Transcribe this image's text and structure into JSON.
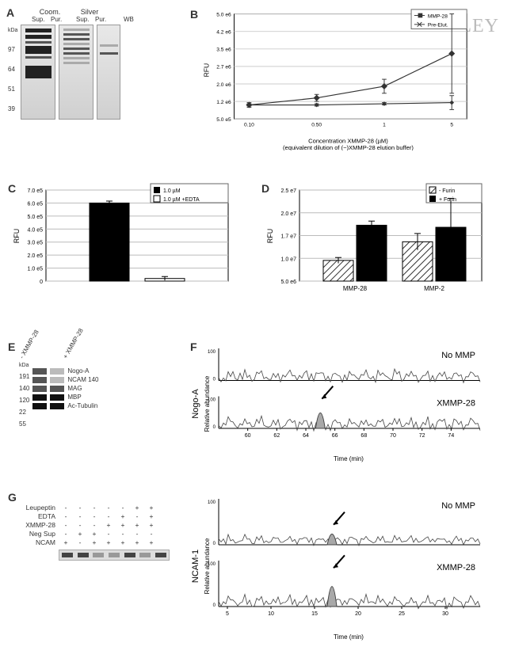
{
  "watermark": "© WILEY",
  "panelA": {
    "label": "A",
    "topHeaders": [
      "Coom.",
      "Silver",
      ""
    ],
    "subHeaders": [
      "Sup.",
      "Pur.",
      "Sup.",
      "Pur.",
      "WB"
    ],
    "mwHeader": "kDa",
    "mw": [
      "97",
      "64",
      "51",
      "39"
    ]
  },
  "panelB": {
    "label": "B",
    "type": "line",
    "ylabel": "RFU",
    "xlabel": "Concentration XMMP-28 (µM)\n(equivalent dilution of (−)XMMP-28 elution buffer)",
    "legend": [
      "MMP-28",
      "Pre-Elut."
    ],
    "xticks": [
      "0.10",
      "0.50",
      "1",
      "5"
    ],
    "yticks": [
      "5.0 e5",
      "1.2 e6",
      "2.0 e6",
      "2.7 e6",
      "3.5 e6",
      "4.2 e6",
      "5.0 e6"
    ],
    "ylim": [
      500000,
      5000000
    ],
    "series": {
      "mmp28": [
        1100000,
        1400000,
        1900000,
        3300000
      ],
      "mmp28_err": [
        100000,
        150000,
        300000,
        1700000
      ],
      "preelut": [
        1100000,
        1100000,
        1150000,
        1200000
      ],
      "preelut_err": [
        50000,
        50000,
        50000,
        300000
      ]
    },
    "colors": {
      "line": "#333333",
      "bg": "#ffffff",
      "grid": "#cccccc",
      "axis": "#000000"
    }
  },
  "panelC": {
    "label": "C",
    "type": "bar",
    "ylabel": "RFU",
    "legend": [
      "1.0 µM",
      "1.0 µM +EDTA"
    ],
    "yticks": [
      "0",
      "1.0 e5",
      "2.0 e5",
      "3.0 e5",
      "4.0 e5",
      "5.0 e5",
      "6.0 e5",
      "7.0 e5"
    ],
    "ylim": [
      0,
      700000
    ],
    "values": [
      600000,
      20000
    ],
    "errs": [
      15000,
      15000
    ],
    "bar_colors": [
      "#000000",
      "#ffffff"
    ],
    "bar_borders": [
      "#000000",
      "#000000"
    ],
    "grid_color": "#bbbbbb"
  },
  "panelD": {
    "label": "D",
    "type": "grouped-bar",
    "ylabel": "RFU",
    "legend": [
      "- Furin",
      "+ Furin"
    ],
    "categories": [
      "MMP-28",
      "MMP-2"
    ],
    "yticks": [
      "5.0 e6",
      "1.0 e7",
      "1.7 e7",
      "2.0 e7",
      "2.5 e7"
    ],
    "ylim": [
      3000000,
      25000000
    ],
    "values": {
      "minusFurin": [
        8000000,
        12500000
      ],
      "plusFurin": [
        16500000,
        16000000
      ]
    },
    "errs": {
      "minusFurin": [
        700000,
        2000000
      ],
      "plusFurin": [
        1000000,
        7000000
      ]
    },
    "bar_patterns": [
      "hatch",
      "solid"
    ],
    "hatch_color": "#333333",
    "solid_color": "#000000",
    "grid_color": "#bbbbbb"
  },
  "panelE": {
    "label": "E",
    "laneHeaders": [
      "- XMMP-28",
      "+ XMMP-28"
    ],
    "mwHeader": "kDa",
    "rows": [
      {
        "mw": "191",
        "label": "Nogo-A",
        "b1": "mid",
        "b2": "faint"
      },
      {
        "mw": "140",
        "label": "NCAM 140",
        "b1": "mid",
        "b2": "faint"
      },
      {
        "mw": "120",
        "label": "MAG",
        "b1": "mid",
        "b2": "mid"
      },
      {
        "mw": "22",
        "label": "MBP",
        "b1": "dark",
        "b2": "dark"
      },
      {
        "mw": "55",
        "label": "Ac-Tubulin",
        "b1": "dark",
        "b2": "dark"
      }
    ]
  },
  "panelF": {
    "label": "F",
    "group_ylabel": "Nogo-A",
    "ylabel": "Relative abundance",
    "xlabel": "Time (min)",
    "xlim": [
      58,
      76
    ],
    "xticks": [
      60,
      62,
      64,
      66,
      68,
      70,
      72,
      74
    ],
    "ylim": [
      0,
      100
    ],
    "traces": [
      {
        "label": "No MMP",
        "peak_x": null
      },
      {
        "label": "XMMP-28",
        "peak_x": 65,
        "arrow": true
      }
    ],
    "line_color": "#444444",
    "peak_fill": "#a8a8a8"
  },
  "panelG": {
    "label": "G",
    "rows": [
      {
        "label": "Leupeptin",
        "vals": [
          "-",
          "-",
          "-",
          "-",
          "-",
          "+",
          "+"
        ]
      },
      {
        "label": "EDTA",
        "vals": [
          "-",
          "-",
          "-",
          "-",
          "+",
          "-",
          "+"
        ]
      },
      {
        "label": "XMMP-28",
        "vals": [
          "-",
          "-",
          "-",
          "+",
          "+",
          "+",
          "+"
        ]
      },
      {
        "label": "Neg Sup",
        "vals": [
          "-",
          "+",
          "+",
          "-",
          "-",
          "-",
          "-"
        ]
      },
      {
        "label": "NCAM",
        "vals": [
          "+",
          "-",
          "+",
          "+",
          "+",
          "+",
          "+"
        ]
      }
    ],
    "band_intensity": [
      "dark",
      "dark",
      "faint",
      "faint",
      "mid",
      "faint",
      "mid"
    ]
  },
  "panelFR": {
    "group_ylabel": "NCAM-1",
    "ylabel": "Relative abundance",
    "xlabel": "Time (min)",
    "xlim": [
      4,
      34
    ],
    "xticks": [
      5,
      10,
      15,
      20,
      25,
      30
    ],
    "ylim": [
      0,
      100
    ],
    "traces": [
      {
        "label": "No MMP",
        "peak_x": 17,
        "arrow": true,
        "small": true
      },
      {
        "label": "XMMP-28",
        "peak_x": 17,
        "arrow": true
      }
    ],
    "line_color": "#444444",
    "peak_fill": "#a8a8a8"
  }
}
